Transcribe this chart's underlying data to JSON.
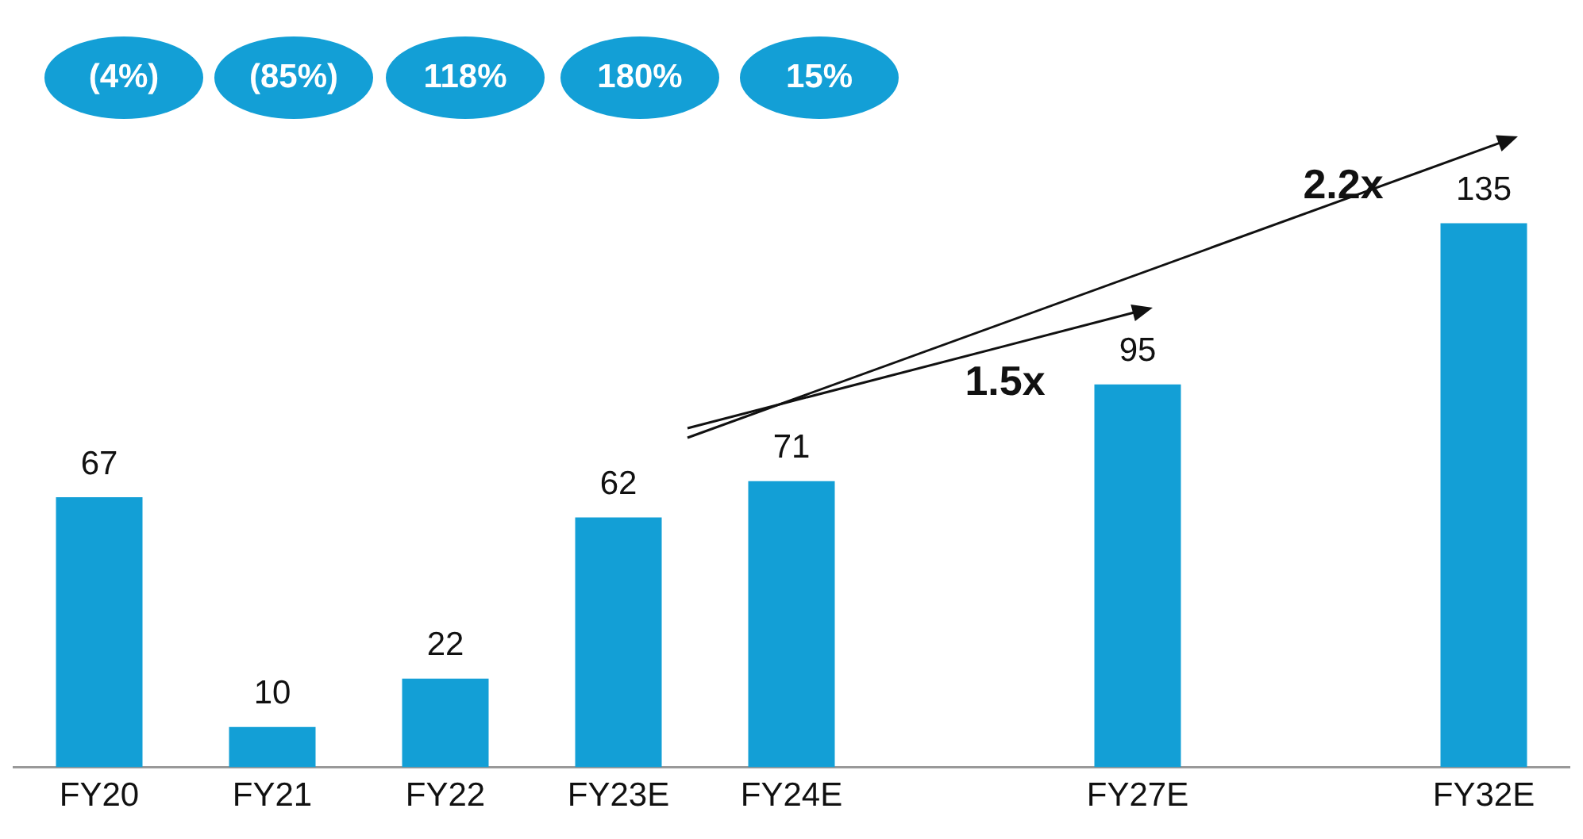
{
  "chart_data": {
    "type": "bar",
    "categories": [
      "FY20",
      "FY21",
      "FY22",
      "FY23E",
      "FY24E",
      null,
      "FY27E",
      null,
      "FY32E"
    ],
    "values": [
      67,
      10,
      22,
      62,
      71,
      null,
      95,
      null,
      135
    ],
    "color": "#139fd6",
    "data_labels": true,
    "legend": false,
    "annotations": [
      "(4%)",
      "(85%)",
      "118%",
      "180%",
      "15%",
      "1.5x",
      "2.2x"
    ]
  }
}
